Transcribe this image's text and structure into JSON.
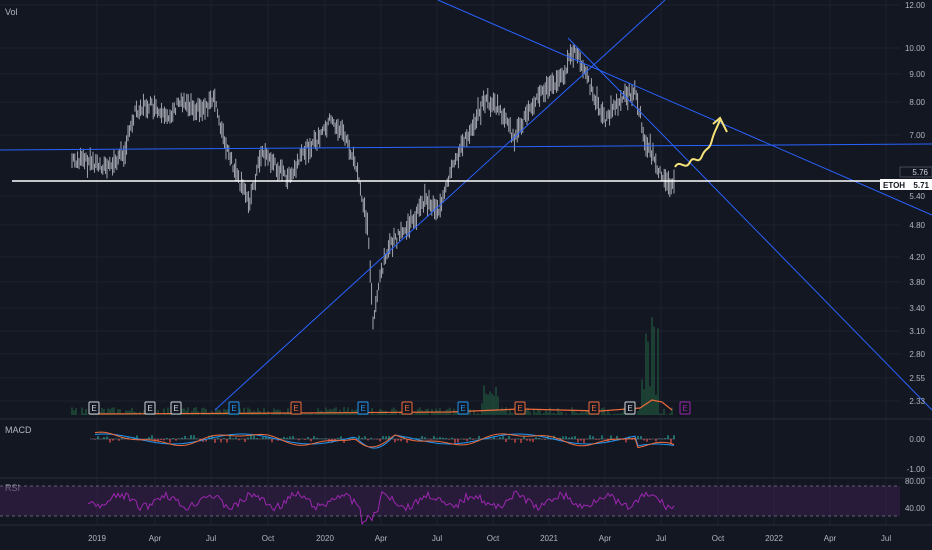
{
  "labels": {
    "vol": "Vol",
    "macd": "MACD",
    "rsi": "RSI"
  },
  "price_axis": {
    "ticks": [
      "12.00",
      "10.00",
      "9.00",
      "8.00",
      "7.00",
      "5.40",
      "4.80",
      "4.20",
      "3.80",
      "3.40",
      "3.10",
      "2.80",
      "2.55",
      "2.33"
    ],
    "ref_value": "5.76",
    "symbol": "ETOH",
    "last_price": "5.71"
  },
  "macd_axis": {
    "ticks": [
      "0.00",
      "-1.00"
    ]
  },
  "rsi_axis": {
    "ticks": [
      "80.00",
      "40.00"
    ]
  },
  "time_axis": [
    "2019",
    "Apr",
    "Jul",
    "Oct",
    "2020",
    "Apr",
    "Jul",
    "Oct",
    "2021",
    "Apr",
    "Jul",
    "Oct",
    "2022",
    "Apr",
    "Jul"
  ],
  "events": [
    {
      "letter": "E",
      "color": "#d1d4dc"
    },
    {
      "letter": "E",
      "color": "#d1d4dc"
    },
    {
      "letter": "E",
      "color": "#d1d4dc"
    },
    {
      "letter": "E",
      "color": "#2196f3"
    },
    {
      "letter": "E",
      "color": "#f06b3a"
    },
    {
      "letter": "E",
      "color": "#2196f3"
    },
    {
      "letter": "E",
      "color": "#f06b3a"
    },
    {
      "letter": "E",
      "color": "#2196f3"
    },
    {
      "letter": "E",
      "color": "#f06b3a"
    },
    {
      "letter": "E",
      "color": "#f06b3a"
    },
    {
      "letter": "E",
      "color": "#d1d4dc"
    },
    {
      "letter": "E",
      "color": "#9c27b0"
    }
  ],
  "colors": {
    "background": "#131722",
    "grid": "#1e2230",
    "candle": "#b2b5be",
    "trendline": "#2962ff",
    "support": "#ffffff",
    "projection": "#f5e27a",
    "macd_line": "#2196f3",
    "signal_line": "#f06b3a",
    "rsi_line": "#9c27b0",
    "rsi_band": "#3a1f4d",
    "axis_text": "#b2b5be"
  }
}
